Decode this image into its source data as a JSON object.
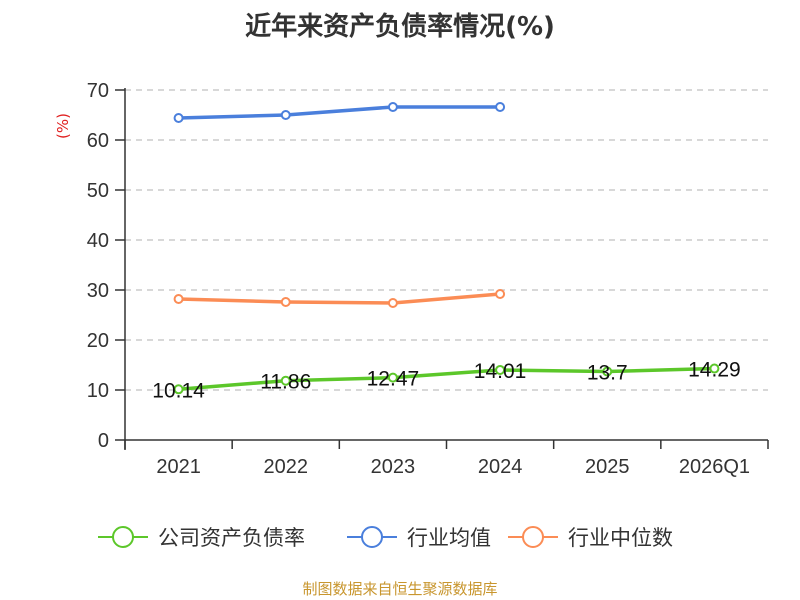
{
  "title": "近年来资产负债率情况(%)",
  "source": "制图数据来自恒生聚源数据库",
  "y_unit_label": "(%)",
  "colors": {
    "company": "#5cc72a",
    "industry_avg": "#4a7fdc",
    "industry_median": "#fb8c55",
    "source": "#c8962e",
    "unit": "#e02020"
  },
  "chart_data": {
    "type": "line",
    "title": "近年来资产负债率情况(%)",
    "xlabel": "",
    "ylabel": "(%)",
    "categories": [
      "2021",
      "2022",
      "2023",
      "2024",
      "2025",
      "2026Q1"
    ],
    "ylim": [
      0,
      70
    ],
    "yticks": [
      0,
      10,
      20,
      30,
      40,
      50,
      60,
      70
    ],
    "grid": true,
    "legend_position": "bottom",
    "series": [
      {
        "name": "公司资产负债率",
        "values": [
          10.14,
          11.86,
          12.47,
          14.01,
          13.7,
          14.29
        ],
        "labels": [
          "10.14",
          "11.86",
          "12.47",
          "14.01",
          "13.7",
          "14.29"
        ]
      },
      {
        "name": "行业均值",
        "values": [
          64.4,
          65.0,
          66.6,
          66.6,
          null,
          null
        ]
      },
      {
        "name": "行业中位数",
        "values": [
          28.2,
          27.6,
          27.4,
          29.2,
          null,
          null
        ]
      }
    ]
  },
  "legend": [
    {
      "label": "公司资产负债率"
    },
    {
      "label": "行业均值"
    },
    {
      "label": "行业中位数"
    }
  ]
}
